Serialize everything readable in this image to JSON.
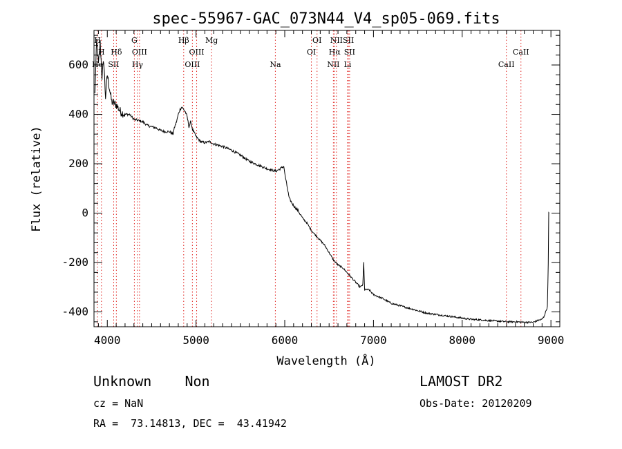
{
  "chart_data": {
    "type": "line",
    "title": "spec-55967-GAC_073N44_V4_sp05-069.fits",
    "xlabel": "Wavelength (Å)",
    "ylabel": "Flux (relative)",
    "xlim": [
      3850,
      9100
    ],
    "ylim": [
      -460,
      740
    ],
    "xticks": [
      4000,
      5000,
      6000,
      7000,
      8000,
      9000
    ],
    "yticks": [
      -400,
      -200,
      0,
      200,
      400,
      600
    ],
    "series": [
      {
        "x": [
          3860,
          3880,
          3900,
          3920,
          3940,
          3960,
          3980,
          4000,
          4050,
          4100,
          4150,
          4200,
          4250,
          4300,
          4350,
          4400,
          4450,
          4500,
          4550,
          4600,
          4650,
          4700,
          4740,
          4760,
          4780,
          4800,
          4820,
          4840,
          4860,
          4880,
          4900,
          4920,
          4940,
          4960,
          5000,
          5050,
          5100,
          5150,
          5200,
          5300,
          5400,
          5500,
          5600,
          5700,
          5800,
          5850,
          5900,
          5950,
          5990,
          6000,
          6020,
          6050,
          6100,
          6150,
          6200,
          6250,
          6300,
          6350,
          6400,
          6450,
          6500,
          6550,
          6600,
          6650,
          6700,
          6750,
          6800,
          6850,
          6880,
          6890,
          6900,
          6950,
          7000,
          7100,
          7200,
          7300,
          7400,
          7500,
          7600,
          7700,
          7800,
          7900,
          8000,
          8100,
          8200,
          8300,
          8400,
          8500,
          8600,
          8700,
          8800,
          8850,
          8900,
          8920,
          8940,
          8960,
          8970,
          8975,
          8980
        ],
        "y": [
          480,
          700,
          600,
          690,
          550,
          620,
          470,
          560,
          450,
          440,
          410,
          400,
          400,
          380,
          375,
          370,
          355,
          350,
          345,
          335,
          330,
          330,
          320,
          350,
          370,
          400,
          420,
          430,
          420,
          410,
          390,
          350,
          370,
          340,
          310,
          290,
          285,
          290,
          280,
          270,
          255,
          235,
          210,
          195,
          180,
          175,
          170,
          180,
          190,
          160,
          120,
          60,
          30,
          10,
          -20,
          -40,
          -70,
          -90,
          -110,
          -130,
          -160,
          -190,
          -210,
          -220,
          -240,
          -260,
          -280,
          -300,
          -290,
          -200,
          -310,
          -310,
          -330,
          -345,
          -365,
          -375,
          -385,
          -395,
          -405,
          -410,
          -415,
          -420,
          -425,
          -430,
          -432,
          -435,
          -437,
          -440,
          -440,
          -442,
          -442,
          -435,
          -430,
          -420,
          -400,
          -380,
          -200,
          0,
          0
        ]
      }
    ],
    "emission_lines": [
      {
        "name": "H",
        "wl": 3889,
        "row": 1
      },
      {
        "name": "H",
        "wl": 3934,
        "row": 2
      },
      {
        "name": "He",
        "wl": 3889,
        "row": 3
      },
      {
        "name": "Hδ",
        "wl": 4102,
        "row": 2
      },
      {
        "name": "SII",
        "wl": 4072,
        "row": 3
      },
      {
        "name": "G",
        "wl": 4305,
        "row": 1
      },
      {
        "name": "OIII",
        "wl": 4363,
        "row": 2
      },
      {
        "name": "Hγ",
        "wl": 4340,
        "row": 3
      },
      {
        "name": "Hβ",
        "wl": 4861,
        "row": 1
      },
      {
        "name": "OIII",
        "wl": 5007,
        "row": 2
      },
      {
        "name": "OIII",
        "wl": 4959,
        "row": 3
      },
      {
        "name": "Mg",
        "wl": 5175,
        "row": 1
      },
      {
        "name": "Na",
        "wl": 5894,
        "row": 3
      },
      {
        "name": "OI",
        "wl": 6364,
        "row": 1
      },
      {
        "name": "OI",
        "wl": 6300,
        "row": 2
      },
      {
        "name": "NII",
        "wl": 6583,
        "row": 1
      },
      {
        "name": "SII",
        "wl": 6717,
        "row": 1
      },
      {
        "name": "Hα",
        "wl": 6563,
        "row": 2
      },
      {
        "name": "SII",
        "wl": 6731,
        "row": 2
      },
      {
        "name": "NII",
        "wl": 6548,
        "row": 3
      },
      {
        "name": "Li",
        "wl": 6708,
        "row": 3
      },
      {
        "name": "CaII",
        "wl": 8662,
        "row": 2
      },
      {
        "name": "CaII",
        "wl": 8498,
        "row": 3
      }
    ],
    "line_marker_color": "#e0201c"
  },
  "footer": {
    "class_text": "Unknown    Non",
    "survey": "LAMOST DR2",
    "cz": "cz = NaN",
    "obs_date": "Obs-Date: 20120209",
    "coords": "RA =  73.14813, DEC =  43.41942"
  }
}
